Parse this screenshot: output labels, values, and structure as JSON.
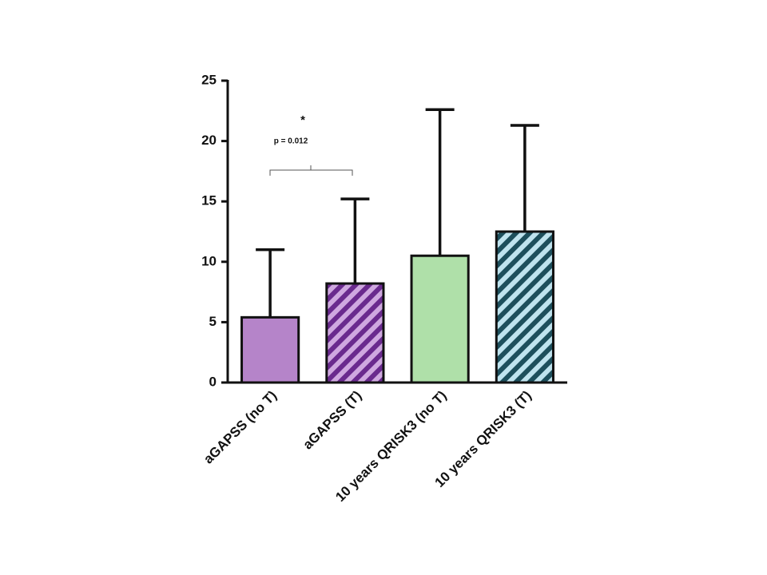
{
  "chart_data": {
    "type": "bar",
    "categories": [
      "aGAPSS (no T)",
      "aGAPSS (T)",
      "10 years QRISK3 (no T)",
      "10 years QRISK3 (T)"
    ],
    "values": [
      5.4,
      8.2,
      10.5,
      12.5
    ],
    "errors": [
      5.6,
      7.0,
      12.1,
      8.8
    ],
    "bar_styles": [
      {
        "fill": "#b584c9"
      },
      {
        "fill": "#cfa8e0",
        "hatch": "#6a2a8e"
      },
      {
        "fill": "#afe0a9"
      },
      {
        "fill": "#bfe3ee",
        "hatch": "#1d4f5c"
      }
    ],
    "ylim": [
      0,
      25
    ],
    "yticks": [
      0,
      5,
      10,
      15,
      20,
      25
    ],
    "annotation": {
      "star": "*",
      "text": "p = 0.012"
    }
  }
}
